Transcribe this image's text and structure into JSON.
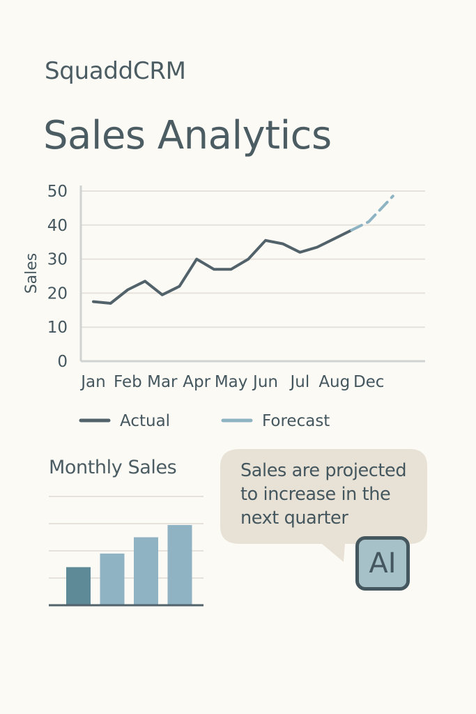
{
  "header": {
    "brand": "SquaddCRM",
    "title": "Sales Analytics"
  },
  "colors": {
    "background": "#fcfaf5",
    "text": "#44565e",
    "actual": "#52626a",
    "forecast": "#8eb3c3",
    "grid": "#e6e2db",
    "bar_dark": "#5e8a98",
    "bar_light": "#8fb3c2",
    "bubble": "#e8e2d6",
    "badge": "#a6c2c8"
  },
  "chart_data": [
    {
      "type": "line",
      "ylabel": "Sales",
      "ylim": [
        0,
        50
      ],
      "yticks": [
        0,
        10,
        20,
        30,
        40,
        50
      ],
      "xtick_labels": [
        "Jan",
        "Feb",
        "Mar",
        "Apr",
        "May",
        "Jun",
        "Jul",
        "Aug",
        "Dec"
      ],
      "grid": true,
      "legend_position": "bottom",
      "series": [
        {
          "name": "Actual",
          "style": "solid",
          "points": [
            {
              "x": 0,
              "y": 17.5
            },
            {
              "x": 0.5,
              "y": 17
            },
            {
              "x": 1,
              "y": 21
            },
            {
              "x": 1.5,
              "y": 23.5
            },
            {
              "x": 2,
              "y": 19.5
            },
            {
              "x": 2.5,
              "y": 22
            },
            {
              "x": 3,
              "y": 30
            },
            {
              "x": 3.5,
              "y": 27
            },
            {
              "x": 4,
              "y": 27
            },
            {
              "x": 4.5,
              "y": 30
            },
            {
              "x": 5,
              "y": 35.5
            },
            {
              "x": 5.5,
              "y": 34.5
            },
            {
              "x": 6,
              "y": 32
            },
            {
              "x": 6.5,
              "y": 33.5
            },
            {
              "x": 7,
              "y": 36
            },
            {
              "x": 7.5,
              "y": 38.5
            }
          ]
        },
        {
          "name": "Forecast",
          "style": "dashed",
          "points": [
            {
              "x": 7.5,
              "y": 38.5
            },
            {
              "x": 8,
              "y": 41
            },
            {
              "x": 8.7,
              "y": 48.5
            }
          ]
        }
      ]
    },
    {
      "type": "bar",
      "title": "Monthly Sales",
      "values": [
        14,
        19,
        25,
        29.5
      ],
      "ylim": [
        0,
        40
      ],
      "grid": true
    }
  ],
  "insight": {
    "message": "Sales are projected to increase in the next quarter",
    "badge": "AI"
  }
}
